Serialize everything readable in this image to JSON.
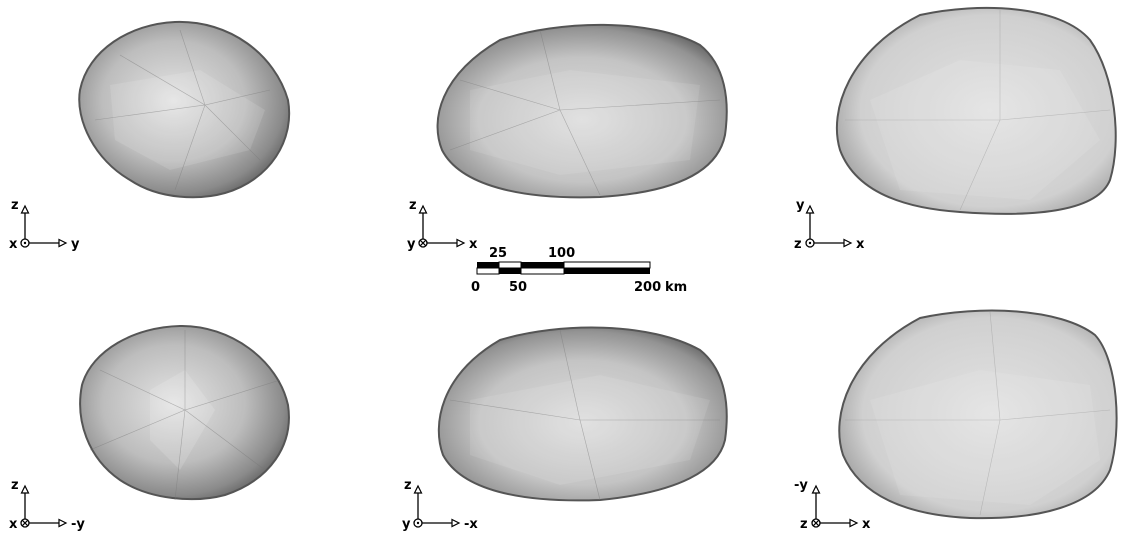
{
  "panels": [
    {
      "id": "p1",
      "axis_up": "z",
      "axis_right": "y",
      "axis_out": "x",
      "out_symbol": "dot"
    },
    {
      "id": "p2",
      "axis_up": "z",
      "axis_right": "x",
      "axis_out": "y",
      "out_symbol": "cross"
    },
    {
      "id": "p3",
      "axis_up": "y",
      "axis_right": "x",
      "axis_out": "z",
      "out_symbol": "dot"
    },
    {
      "id": "p4",
      "axis_up": "z",
      "axis_right": "-y",
      "axis_out": "x",
      "out_symbol": "cross"
    },
    {
      "id": "p5",
      "axis_up": "z",
      "axis_right": "-x",
      "axis_out": "y",
      "out_symbol": "dot"
    },
    {
      "id": "p6",
      "axis_up": "-y",
      "axis_right": "x",
      "axis_out": "z",
      "out_symbol": "cross"
    }
  ],
  "scale_bar": {
    "top_labels": [
      "25",
      "100"
    ],
    "bottom_labels": [
      "0",
      "50",
      "200"
    ],
    "unit": "km"
  },
  "colors": {
    "shape_light": "#e2e2e2",
    "shape_dark": "#5a5a5a",
    "outline": "#444444"
  }
}
